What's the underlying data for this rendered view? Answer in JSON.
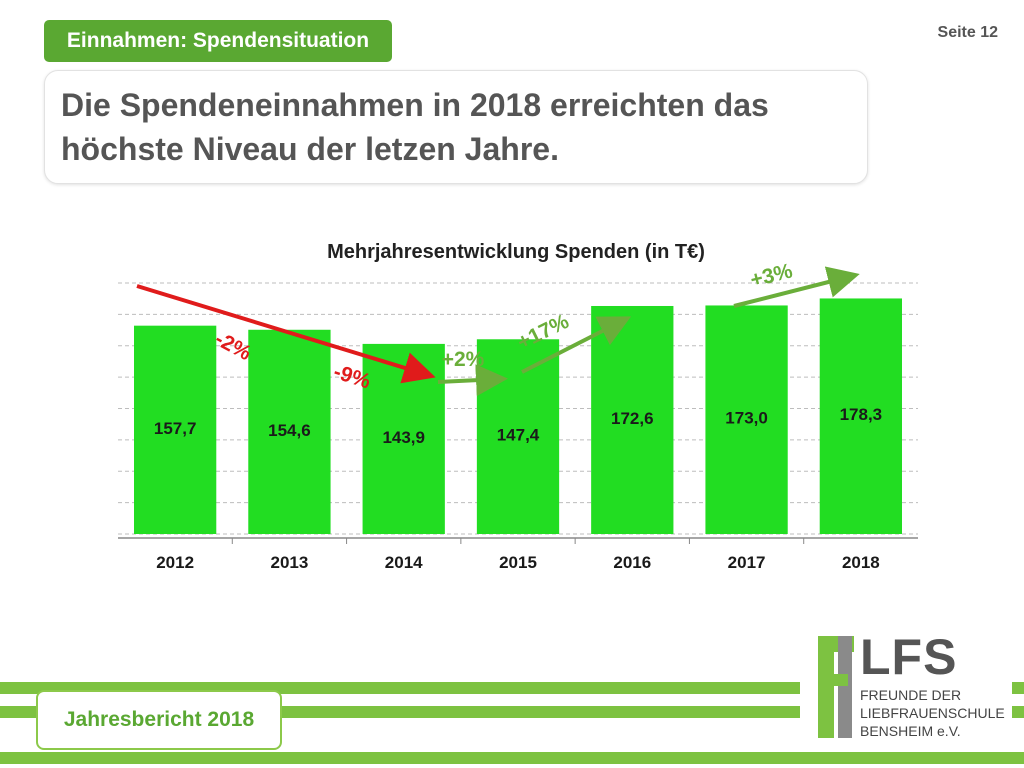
{
  "header": {
    "section_tag": "Einnahmen: Spendensituation",
    "page_number": "Seite 12",
    "headline": "Die Spendeneinnahmen in 2018 erreichten das höchste Niveau der letzen Jahre."
  },
  "chart_data": {
    "type": "bar",
    "title": "Mehrjahresentwicklung Spenden (in T€)",
    "categories": [
      "2012",
      "2013",
      "2014",
      "2015",
      "2016",
      "2017",
      "2018"
    ],
    "values": [
      157.7,
      154.6,
      143.9,
      147.4,
      172.6,
      173.0,
      178.3
    ],
    "value_labels": [
      "157,7",
      "154,6",
      "143,9",
      "147,4",
      "172,6",
      "173,0",
      "178,3"
    ],
    "bar_color": "#22dd22",
    "ylim": [
      0,
      190
    ],
    "gridlines": true,
    "annotations": [
      {
        "text": "-2%",
        "color": "#e01b1b",
        "direction": "down"
      },
      {
        "text": "-9%",
        "color": "#e01b1b",
        "direction": "down"
      },
      {
        "text": "+2%",
        "color": "#6aae3a",
        "direction": "up"
      },
      {
        "text": "+17%",
        "color": "#6aae3a",
        "direction": "up"
      },
      {
        "text": "+3%",
        "color": "#6aae3a",
        "direction": "up"
      }
    ]
  },
  "footer": {
    "report_label": "Jahresbericht 2018",
    "logo": {
      "letters": "LFS",
      "lines": [
        "FREUNDE DER",
        "LIEBFRAUENSCHULE",
        "BENSHEIM e.V."
      ]
    }
  },
  "colors": {
    "accent_green": "#5aa832",
    "stripe_green": "#7dc241",
    "decline_red": "#e01b1b",
    "growth_green": "#6aae3a"
  }
}
